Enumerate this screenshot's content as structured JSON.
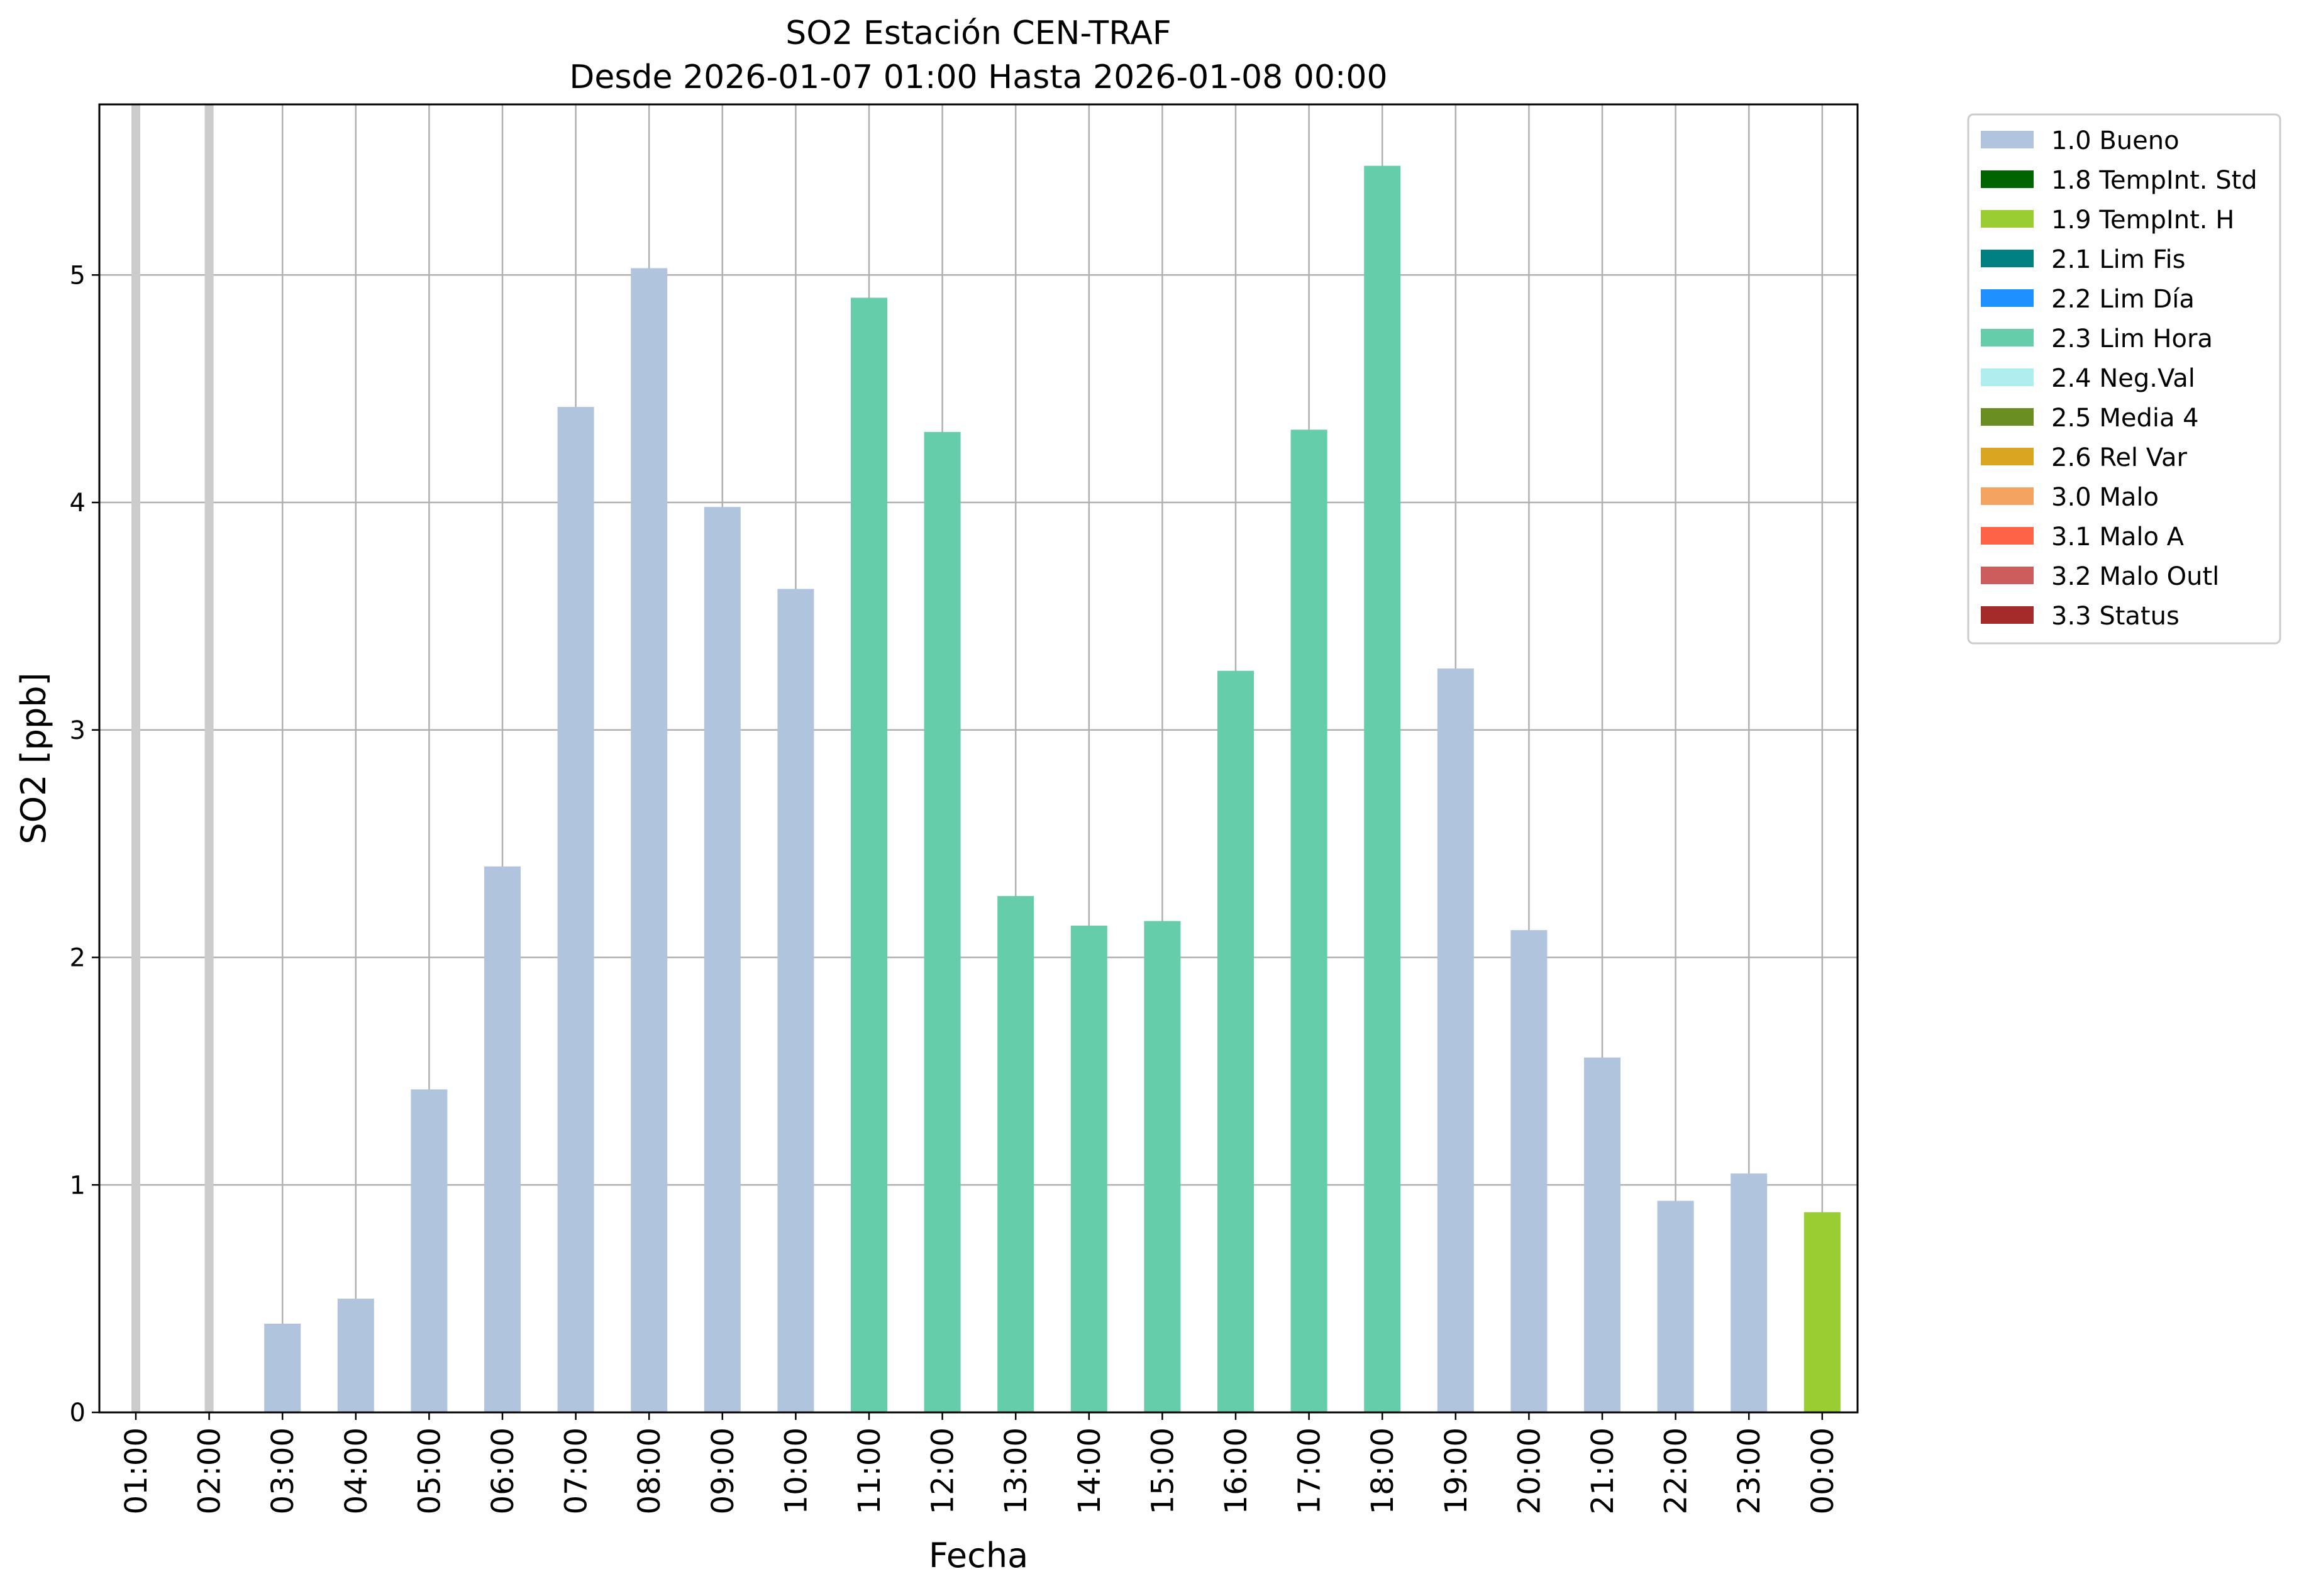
{
  "chart_data": {
    "type": "bar",
    "title_line1": "SO2 Estación CEN-TRAF",
    "title_line2": "Desde 2026-01-07 01:00 Hasta 2026-01-08 00:00",
    "xlabel": "Fecha",
    "ylabel": "SO2 [ppb]",
    "ylim": [
      0,
      5.75
    ],
    "yticks": [
      "0",
      "1",
      "2",
      "3",
      "4",
      "5"
    ],
    "grid": true,
    "legend_position": "outside-right",
    "categories": [
      "01:00",
      "02:00",
      "03:00",
      "04:00",
      "05:00",
      "06:00",
      "07:00",
      "08:00",
      "09:00",
      "10:00",
      "11:00",
      "12:00",
      "13:00",
      "14:00",
      "15:00",
      "16:00",
      "17:00",
      "18:00",
      "19:00",
      "20:00",
      "21:00",
      "22:00",
      "23:00",
      "00:00"
    ],
    "values": [
      null,
      null,
      0.39,
      0.5,
      1.42,
      2.4,
      4.42,
      5.03,
      3.98,
      3.62,
      4.9,
      4.31,
      2.27,
      2.14,
      2.16,
      3.26,
      4.32,
      5.48,
      3.27,
      2.12,
      1.56,
      0.93,
      1.05,
      0.88
    ],
    "flags": [
      "missing",
      "missing",
      "1.0 Bueno",
      "1.0 Bueno",
      "1.0 Bueno",
      "1.0 Bueno",
      "1.0 Bueno",
      "1.0 Bueno",
      "1.0 Bueno",
      "1.0 Bueno",
      "2.3 Lim Hora",
      "2.3 Lim Hora",
      "2.3 Lim Hora",
      "2.3 Lim Hora",
      "2.3 Lim Hora",
      "2.3 Lim Hora",
      "2.3 Lim Hora",
      "2.3 Lim Hora",
      "1.0 Bueno",
      "1.0 Bueno",
      "1.0 Bueno",
      "1.0 Bueno",
      "1.0 Bueno",
      "1.9 TempInt. H"
    ],
    "missing_color": "#cccccc",
    "legend": [
      {
        "label": "1.0 Bueno",
        "color": "#b0c4de"
      },
      {
        "label": "1.8 TempInt. Std",
        "color": "#006400"
      },
      {
        "label": "1.9 TempInt. H",
        "color": "#9acd32"
      },
      {
        "label": "2.1 Lim Fis",
        "color": "#008080"
      },
      {
        "label": "2.2 Lim Día",
        "color": "#1e90ff"
      },
      {
        "label": "2.3 Lim Hora",
        "color": "#66cdaa"
      },
      {
        "label": "2.4 Neg.Val",
        "color": "#afeeee"
      },
      {
        "label": "2.5 Media 4",
        "color": "#6b8e23"
      },
      {
        "label": "2.6 Rel Var",
        "color": "#daa520"
      },
      {
        "label": "3.0 Malo",
        "color": "#f4a460"
      },
      {
        "label": "3.1 Malo A",
        "color": "#ff6347"
      },
      {
        "label": "3.2 Malo Outl",
        "color": "#cd5c5c"
      },
      {
        "label": "3.3 Status",
        "color": "#a52a2a"
      }
    ]
  }
}
